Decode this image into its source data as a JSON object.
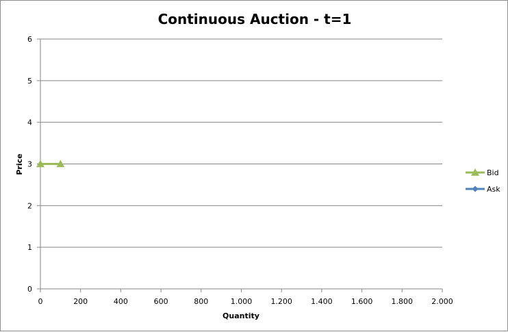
{
  "chart_data": {
    "type": "line",
    "title": "Continuous Auction - t=1",
    "xlabel": "Quantity",
    "ylabel": "Price",
    "xlim": [
      0,
      2000
    ],
    "ylim": [
      0,
      6
    ],
    "x_ticks": [
      "0",
      "200",
      "400",
      "600",
      "800",
      "1.000",
      "1.200",
      "1.400",
      "1.600",
      "1.800",
      "2.000"
    ],
    "y_ticks": [
      "0",
      "1",
      "2",
      "3",
      "4",
      "5",
      "6"
    ],
    "grid": "horizontal",
    "legend_position": "right",
    "series": [
      {
        "name": "Bid",
        "color": "#9bbb59",
        "marker": "triangle",
        "points": [
          [
            0,
            3
          ],
          [
            100,
            3
          ]
        ]
      },
      {
        "name": "Ask",
        "color": "#4f81bd",
        "marker": "diamond",
        "points": []
      }
    ]
  }
}
